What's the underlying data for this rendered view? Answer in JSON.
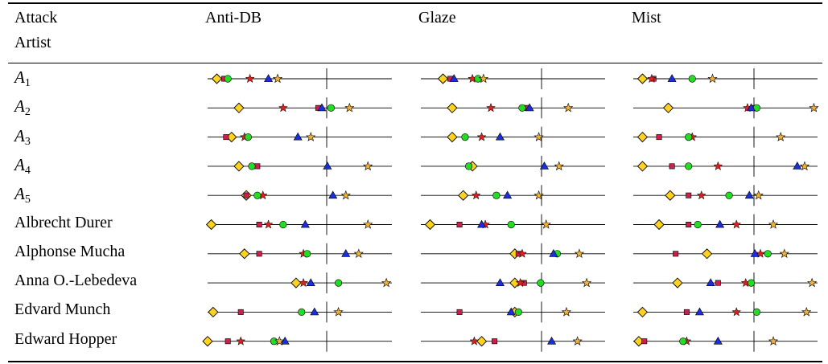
{
  "header": {
    "corner_top": "Attack",
    "corner_bottom": "Artist",
    "columns": [
      "Anti-DB",
      "Glaze",
      "Mist"
    ]
  },
  "legend_markers": {
    "diamond": "#ffd21e",
    "square": "#cc1f4d",
    "star_red": "#dd1f1f",
    "circle": "#22dd22",
    "triangle": "#1a2ee0",
    "star_orange": "#f2b035"
  },
  "chart_data": {
    "type": "scatter",
    "description_units": "horizontal position within each cell, 0 = left end of line, 1 = right end; vertical tick marks the reference point",
    "columns": [
      "Anti-DB",
      "Glaze",
      "Mist"
    ],
    "rows": [
      {
        "artist": "A",
        "sub": "1",
        "math": true,
        "cells": [
          {
            "diamond": 0.05,
            "square": 0.09,
            "circle": 0.11,
            "star_red": 0.23,
            "triangle": 0.33,
            "star_orange": 0.38
          },
          {
            "diamond": 0.12,
            "square": 0.16,
            "triangle": 0.18,
            "star_red": 0.28,
            "circle": 0.31,
            "star_orange": 0.34
          },
          {
            "diamond": 0.05,
            "star_red": 0.1,
            "square": 0.11,
            "triangle": 0.21,
            "circle": 0.32,
            "star_orange": 0.43
          }
        ]
      },
      {
        "artist": "A",
        "sub": "2",
        "math": true,
        "cells": [
          {
            "diamond": 0.17,
            "star_red": 0.41,
            "square": 0.6,
            "triangle": 0.62,
            "circle": 0.67,
            "star_orange": 0.77
          },
          {
            "diamond": 0.17,
            "star_red": 0.38,
            "circle": 0.55,
            "square": 0.57,
            "triangle": 0.59,
            "star_orange": 0.8
          },
          {
            "diamond": 0.19,
            "star_red": 0.62,
            "triangle": 0.64,
            "square": 0.66,
            "circle": 0.67,
            "star_orange": 0.98
          }
        ]
      },
      {
        "artist": "A",
        "sub": "3",
        "math": true,
        "cells": [
          {
            "square": 0.1,
            "diamond": 0.13,
            "star_red": 0.2,
            "circle": 0.22,
            "triangle": 0.49,
            "star_orange": 0.56
          },
          {
            "diamond": 0.17,
            "circle": 0.24,
            "star_red": 0.33,
            "triangle": 0.43,
            "star_orange": 0.64
          },
          {
            "diamond": 0.05,
            "square": 0.14,
            "circle": 0.3,
            "star_red": 0.32,
            "star_orange": 0.8
          }
        ]
      },
      {
        "artist": "A",
        "sub": "4",
        "math": true,
        "cells": [
          {
            "diamond": 0.17,
            "circle": 0.24,
            "square": 0.27,
            "triangle": 0.65,
            "star_orange": 0.87
          },
          {
            "circle": 0.26,
            "square": 0.26,
            "diamond": 0.28,
            "triangle": 0.67,
            "star_orange": 0.75
          },
          {
            "diamond": 0.05,
            "square": 0.21,
            "circle": 0.3,
            "star_red": 0.46,
            "triangle": 0.89,
            "star_orange": 0.93
          }
        ]
      },
      {
        "artist": "A",
        "sub": "5",
        "math": true,
        "cells": [
          {
            "square": 0.21,
            "diamond": 0.21,
            "circle": 0.27,
            "star_red": 0.3,
            "triangle": 0.68,
            "star_orange": 0.75
          },
          {
            "diamond": 0.23,
            "star_red": 0.3,
            "square": 0.41,
            "circle": 0.41,
            "triangle": 0.47,
            "star_orange": 0.64
          },
          {
            "diamond": 0.2,
            "square": 0.3,
            "star_red": 0.37,
            "circle": 0.52,
            "triangle": 0.63,
            "star_orange": 0.68
          }
        ]
      },
      {
        "artist": "Albrecht Durer",
        "math": false,
        "cells": [
          {
            "diamond": 0.02,
            "square": 0.28,
            "star_red": 0.33,
            "circle": 0.41,
            "triangle": 0.53,
            "star_orange": 0.87
          },
          {
            "diamond": 0.05,
            "square": 0.21,
            "triangle": 0.33,
            "star_red": 0.35,
            "circle": 0.49,
            "star_orange": 0.68
          },
          {
            "diamond": 0.14,
            "square": 0.3,
            "circle": 0.35,
            "triangle": 0.47,
            "star_red": 0.56,
            "star_orange": 0.76
          }
        ]
      },
      {
        "artist": "Alphonse Mucha",
        "math": false,
        "cells": [
          {
            "diamond": 0.2,
            "square": 0.28,
            "star_red": 0.52,
            "circle": 0.54,
            "triangle": 0.75,
            "star_orange": 0.82
          },
          {
            "diamond": 0.51,
            "square": 0.53,
            "star_red": 0.55,
            "triangle": 0.72,
            "circle": 0.74,
            "star_orange": 0.86
          },
          {
            "square": 0.23,
            "diamond": 0.4,
            "triangle": 0.66,
            "star_red": 0.69,
            "circle": 0.73,
            "star_orange": 0.82
          }
        ]
      },
      {
        "artist": "Anna O.-Lebedeva",
        "math": false,
        "cells": [
          {
            "diamond": 0.48,
            "star_red": 0.52,
            "triangle": 0.56,
            "circle": 0.71,
            "star_orange": 0.97
          },
          {
            "triangle": 0.43,
            "diamond": 0.51,
            "star_red": 0.54,
            "square": 0.56,
            "circle": 0.65,
            "star_orange": 0.9
          },
          {
            "diamond": 0.24,
            "triangle": 0.42,
            "square": 0.46,
            "star_red": 0.61,
            "circle": 0.64,
            "star_orange": 0.97
          }
        ]
      },
      {
        "artist": "Edvard Munch",
        "math": false,
        "cells": [
          {
            "diamond": 0.03,
            "square": 0.18,
            "circle": 0.51,
            "triangle": 0.58,
            "star_orange": 0.71
          },
          {
            "square": 0.21,
            "triangle": 0.49,
            "diamond": 0.51,
            "circle": 0.53,
            "star_orange": 0.79
          },
          {
            "diamond": 0.05,
            "square": 0.29,
            "triangle": 0.36,
            "star_red": 0.56,
            "circle": 0.67,
            "star_orange": 0.94
          }
        ]
      },
      {
        "artist": "Edward Hopper",
        "math": false,
        "cells": [
          {
            "diamond": 0.0,
            "square": 0.11,
            "star_red": 0.18,
            "circle": 0.36,
            "star_orange": 0.39,
            "triangle": 0.42
          },
          {
            "star_red": 0.29,
            "diamond": 0.33,
            "square": 0.4,
            "triangle": 0.71,
            "star_orange": 0.85
          },
          {
            "diamond": 0.03,
            "square": 0.06,
            "circle": 0.27,
            "star_red": 0.29,
            "triangle": 0.46,
            "star_orange": 0.76
          }
        ]
      }
    ]
  }
}
